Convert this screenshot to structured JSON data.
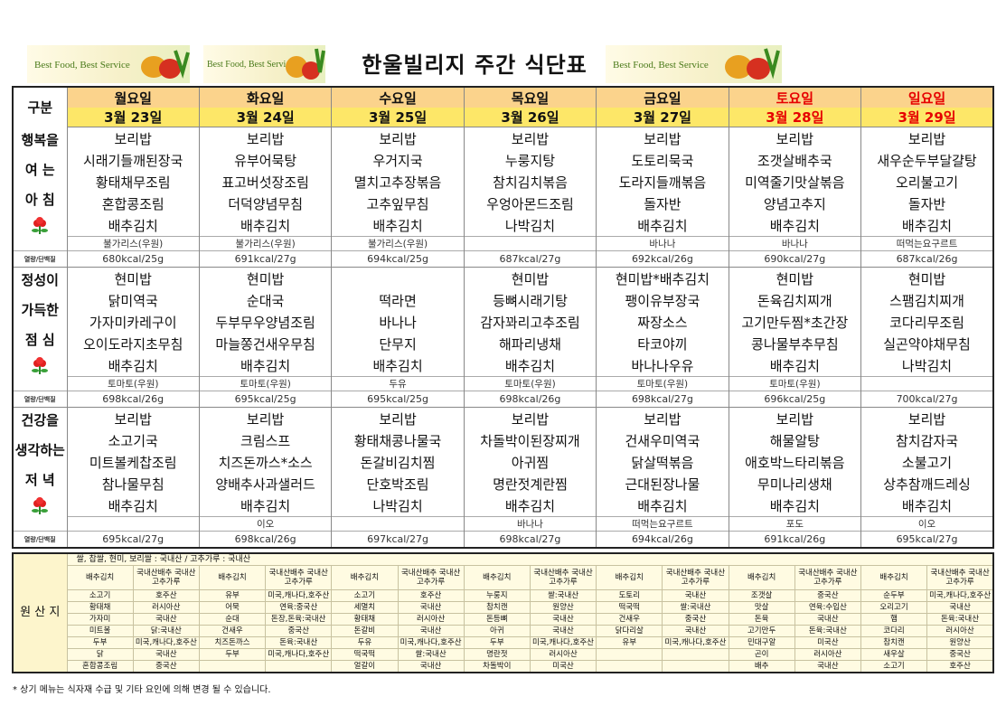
{
  "header": {
    "title": "한울빌리지 주간 식단표",
    "slogans": [
      "Best Food, Best Service",
      "Best Food, Best Service",
      "Best Food, Best Service"
    ]
  },
  "menu": {
    "corner": "구분",
    "kcal_label": "열량/단백질",
    "days": [
      "월요일",
      "화요일",
      "수요일",
      "목요일",
      "금요일",
      "토요일",
      "일요일"
    ],
    "dates": [
      "3월 23일",
      "3월 24일",
      "3월 25일",
      "3월 26일",
      "3월 27일",
      "3월 28일",
      "3월 29일"
    ],
    "meals": [
      {
        "label": [
          "행복을",
          "여 는",
          "아 침"
        ],
        "items": [
          [
            "보리밥",
            "시래기들깨된장국",
            "황태채무조림",
            "혼합콩조림",
            "배추김치"
          ],
          [
            "보리밥",
            "유부어묵탕",
            "표고버섯장조림",
            "더덕양념무침",
            "배추김치"
          ],
          [
            "보리밥",
            "우거지국",
            "멸치고추장볶음",
            "고추잎무침",
            "배추김치"
          ],
          [
            "보리밥",
            "누룽지탕",
            "참치김치볶음",
            "우엉아몬드조림",
            "나박김치"
          ],
          [
            "보리밥",
            "도토리묵국",
            "도라지들깨볶음",
            "돌자반",
            "배추김치"
          ],
          [
            "보리밥",
            "조갯살배추국",
            "미역줄기맛살볶음",
            "양념고추지",
            "배추김치"
          ],
          [
            "보리밥",
            "새우순두부달걀탕",
            "오리불고기",
            "돌자반",
            "배추김치"
          ]
        ],
        "extras": [
          "불가리스(우원)",
          "불가리스(우원)",
          "불가리스(우원)",
          null,
          "바나나",
          "바나나",
          "떠먹는요구르트"
        ],
        "nutrition": [
          "680kcal/25g",
          "691kcal/27g",
          "694kcal/25g",
          "687kcal/27g",
          "692kcal/26g",
          "690kcal/27g",
          "687kcal/26g"
        ]
      },
      {
        "label": [
          "정성이",
          "가득한",
          "점 심"
        ],
        "items": [
          [
            "현미밥",
            "닭미역국",
            "가자미카레구이",
            "오이도라지초무침",
            "배추김치"
          ],
          [
            "현미밥",
            "순대국",
            "두부무우양념조림",
            "마늘쫑건새우무침",
            "배추김치"
          ],
          [
            null,
            "떡라면",
            "바나나",
            "단무지",
            "배추김치"
          ],
          [
            "현미밥",
            "등뼈시래기탕",
            "감자꽈리고추조림",
            "해파리냉채",
            "배추김치"
          ],
          [
            "현미밥*배추김치",
            "팽이유부장국",
            "짜장소스",
            "타코야끼",
            "바나나우유"
          ],
          [
            "현미밥",
            "돈육김치찌개",
            "고기만두찜*초간장",
            "콩나물부추무침",
            "배추김치"
          ],
          [
            "현미밥",
            "스팸김치찌개",
            "코다리무조림",
            "실곤약야채무침",
            "나박김치"
          ]
        ],
        "extras": [
          "토마토(우원)",
          "토마토(우원)",
          "두유",
          "토마토(우원)",
          "토마토(우원)",
          "토마토(우원)",
          null
        ],
        "nutrition": [
          "698kcal/26g",
          "695kcal/25g",
          "695kcal/25g",
          "698kcal/26g",
          "698kcal/27g",
          "696kcal/25g",
          "700kcal/27g"
        ]
      },
      {
        "label": [
          "건강을",
          "생각하는",
          "저 녁"
        ],
        "items": [
          [
            "보리밥",
            "소고기국",
            "미트볼케찹조림",
            "참나물무침",
            "배추김치"
          ],
          [
            "보리밥",
            "크림스프",
            "치즈돈까스*소스",
            "양배추사과샐러드",
            "배추김치"
          ],
          [
            "보리밥",
            "황태채콩나물국",
            "돈갈비김치찜",
            "단호박조림",
            "나박김치"
          ],
          [
            "보리밥",
            "차돌박이된장찌개",
            "아귀찜",
            "명란젓계란찜",
            "배추김치"
          ],
          [
            "보리밥",
            "건새우미역국",
            "닭살떡볶음",
            "근대된장나물",
            "배추김치"
          ],
          [
            "보리밥",
            "해물알탕",
            "애호박느타리볶음",
            "무미나리생채",
            "배추김치"
          ],
          [
            "보리밥",
            "참치감자국",
            "소불고기",
            "상추참깨드레싱",
            "배추김치"
          ]
        ],
        "extras": [
          null,
          "이오",
          null,
          "바나나",
          "떠먹는요구르트",
          "포도",
          "이오"
        ],
        "nutrition": [
          "695kcal/27g",
          "698kcal/26g",
          "697kcal/27g",
          "698kcal/27g",
          "694kcal/26g",
          "691kcal/26g",
          "695kcal/27g"
        ]
      }
    ]
  },
  "origin": {
    "label": "원 산 지",
    "staples": "쌀, 찹쌀, 현미, 보리쌀 : 국내산 / 고추가루 : 국내산",
    "header": [
      "배추김치",
      "국내산배추 국내산고추가루",
      "배추김치",
      "국내산배추 국내산고추가루",
      "배추김치",
      "국내산배추 국내산고추가루",
      "배추김치",
      "국내산배추 국내산고추가루",
      "배추김치",
      "국내산배추 국내산고추가루",
      "배추김치",
      "국내산배추 국내산고추가루",
      "배추김치",
      "국내산배추 국내산고추가루"
    ],
    "rows": [
      [
        "소고기",
        "호주산",
        "유부",
        "미국,캐나다,호주산",
        "소고기",
        "호주산",
        "누룽지",
        "쌀:국내산",
        "도토리",
        "국내산",
        "조갯살",
        "중국산",
        "순두부",
        "미국,캐나다,호주산"
      ],
      [
        "황태채",
        "러시아산",
        "어묵",
        "연육:중국산",
        "세멸치",
        "국내산",
        "참치캔",
        "원양산",
        "떡국떡",
        "쌀:국내산",
        "맛살",
        "연육:수입산",
        "오리고기",
        "국내산"
      ],
      [
        "가자미",
        "국내산",
        "순대",
        "돈장,돈육:국내산",
        "황태채",
        "러시아산",
        "돈등뼈",
        "국내산",
        "건새우",
        "중국산",
        "돈육",
        "국내산",
        "햄",
        "돈육:국내산"
      ],
      [
        "미트볼",
        "닭:국내산",
        "건새우",
        "중국산",
        "돈갈비",
        "국내산",
        "아귀",
        "국내산",
        "닭다리살",
        "국내산",
        "고기만두",
        "돈육:국내산",
        "코다리",
        "러시아산"
      ],
      [
        "두부",
        "미국,캐나다,호주산",
        "치즈돈까스",
        "돈육:국내산",
        "두유",
        "미국,캐나다,호주산",
        "두부",
        "미국,캐나다,호주산",
        "유부",
        "미국,캐나다,호주산",
        "민대구알",
        "미국산",
        "참치캔",
        "원양산"
      ],
      [
        "닭",
        "국내산",
        "두부",
        "미국,캐나다,호주산",
        "떡국떡",
        "쌀:국내산",
        "명란젓",
        "러시아산",
        null,
        null,
        "곤이",
        "러시아산",
        "새우살",
        "중국산"
      ],
      [
        "혼합콩조림",
        "중국산",
        null,
        null,
        "얼갈이",
        "국내산",
        "차돌박이",
        "미국산",
        null,
        null,
        "배추",
        "국내산",
        "소고기",
        "호주산"
      ]
    ]
  },
  "footer": "* 상기 메뉴는 식자재 수급 및 기타 요인에 의해 변경 될 수 있습니다."
}
